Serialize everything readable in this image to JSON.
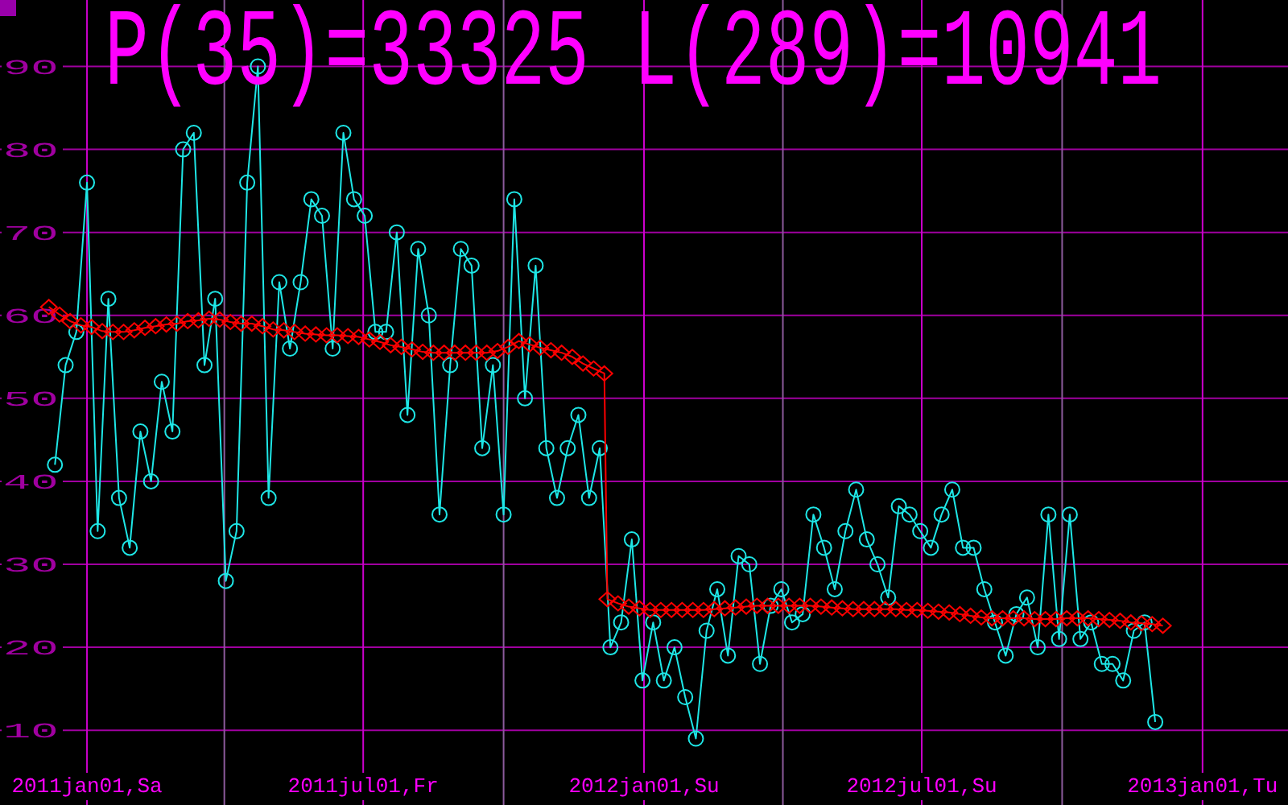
{
  "chart_data": {
    "type": "line",
    "title": "P(35)=33325 L(289)=10941",
    "xlim": [
      "2010-11-05",
      "2013-02-26"
    ],
    "ylim": [
      1,
      98
    ],
    "xticks": [
      {
        "value": "2011-01-01",
        "label": "2011jan01,Sa"
      },
      {
        "value": "2011-04-01",
        "label": null
      },
      {
        "value": "2011-07-01",
        "label": "2011jul01,Fr"
      },
      {
        "value": "2011-10-01",
        "label": null
      },
      {
        "value": "2012-01-01",
        "label": "2012jan01,Su"
      },
      {
        "value": "2012-04-01",
        "label": null
      },
      {
        "value": "2012-07-01",
        "label": "2012jul01,Su"
      },
      {
        "value": "2012-10-01",
        "label": null
      },
      {
        "value": "2013-01-01",
        "label": "2013jan01,Tu"
      }
    ],
    "yticks": [
      10,
      20,
      30,
      40,
      50,
      60,
      70,
      80,
      90
    ],
    "grid": true,
    "series": [
      {
        "color": "#1ee6e6",
        "marker": "circle",
        "x": [
          "2010-12-11",
          "2010-12-18",
          "2010-12-25",
          "2011-01-01",
          "2011-01-08",
          "2011-01-15",
          "2011-01-22",
          "2011-01-29",
          "2011-02-05",
          "2011-02-12",
          "2011-02-19",
          "2011-02-26",
          "2011-03-05",
          "2011-03-12",
          "2011-03-19",
          "2011-03-26",
          "2011-04-02",
          "2011-04-09",
          "2011-04-16",
          "2011-04-23",
          "2011-04-30",
          "2011-05-07",
          "2011-05-14",
          "2011-05-21",
          "2011-05-28",
          "2011-06-04",
          "2011-06-11",
          "2011-06-18",
          "2011-06-25",
          "2011-07-02",
          "2011-07-09",
          "2011-07-16",
          "2011-07-23",
          "2011-07-30",
          "2011-08-06",
          "2011-08-13",
          "2011-08-20",
          "2011-08-27",
          "2011-09-03",
          "2011-09-10",
          "2011-09-17",
          "2011-09-24",
          "2011-10-01",
          "2011-10-08",
          "2011-10-15",
          "2011-10-22",
          "2011-10-29",
          "2011-11-05",
          "2011-11-12",
          "2011-11-19",
          "2011-11-26",
          "2011-12-03",
          "2011-12-10",
          "2011-12-17",
          "2011-12-24",
          "2011-12-31",
          "2012-01-07",
          "2012-01-14",
          "2012-01-21",
          "2012-01-28",
          "2012-02-04",
          "2012-02-11",
          "2012-02-18",
          "2012-02-25",
          "2012-03-03",
          "2012-03-10",
          "2012-03-17",
          "2012-03-24",
          "2012-03-31",
          "2012-04-07",
          "2012-04-14",
          "2012-04-21",
          "2012-04-28",
          "2012-05-05",
          "2012-05-12",
          "2012-05-19",
          "2012-05-26",
          "2012-06-02",
          "2012-06-09",
          "2012-06-16",
          "2012-06-23",
          "2012-06-30",
          "2012-07-07",
          "2012-07-14",
          "2012-07-21",
          "2012-07-28",
          "2012-08-04",
          "2012-08-11",
          "2012-08-18",
          "2012-08-25",
          "2012-09-01",
          "2012-09-08",
          "2012-09-15",
          "2012-09-22",
          "2012-09-29",
          "2012-10-06",
          "2012-10-13",
          "2012-10-20",
          "2012-10-27",
          "2012-11-03",
          "2012-11-10",
          "2012-11-17",
          "2012-11-24",
          "2012-12-01"
        ],
        "values": [
          42,
          54,
          58,
          76,
          34,
          62,
          38,
          32,
          46,
          40,
          52,
          46,
          80,
          82,
          54,
          62,
          28,
          34,
          76,
          90,
          38,
          64,
          56,
          64,
          74,
          72,
          56,
          82,
          74,
          72,
          58,
          58,
          70,
          48,
          68,
          60,
          36,
          54,
          68,
          66,
          44,
          54,
          36,
          74,
          50,
          66,
          44,
          38,
          44,
          48,
          38,
          44,
          20,
          23,
          33,
          16,
          23,
          16,
          20,
          14,
          9,
          22,
          27,
          19,
          31,
          30,
          18,
          25,
          27,
          23,
          24,
          36,
          32,
          27,
          34,
          39,
          33,
          30,
          26,
          37,
          36,
          34,
          32,
          36,
          39,
          32,
          32,
          27,
          23,
          19,
          24,
          26,
          20,
          36,
          21,
          36,
          21,
          23,
          18,
          18,
          16,
          22,
          23,
          11
        ]
      },
      {
        "color": "#ff0000",
        "marker": "diamond",
        "x": [
          "2010-12-07",
          "2010-12-14",
          "2010-12-21",
          "2010-12-28",
          "2011-01-04",
          "2011-01-11",
          "2011-01-18",
          "2011-01-25",
          "2011-02-01",
          "2011-02-08",
          "2011-02-15",
          "2011-02-22",
          "2011-03-01",
          "2011-03-08",
          "2011-03-15",
          "2011-03-22",
          "2011-03-29",
          "2011-04-05",
          "2011-04-12",
          "2011-04-19",
          "2011-04-26",
          "2011-05-03",
          "2011-05-10",
          "2011-05-17",
          "2011-05-24",
          "2011-05-31",
          "2011-06-07",
          "2011-06-14",
          "2011-06-21",
          "2011-06-28",
          "2011-07-05",
          "2011-07-12",
          "2011-07-19",
          "2011-07-26",
          "2011-08-02",
          "2011-08-09",
          "2011-08-16",
          "2011-08-23",
          "2011-08-30",
          "2011-09-06",
          "2011-09-13",
          "2011-09-20",
          "2011-09-27",
          "2011-10-04",
          "2011-10-11",
          "2011-10-18",
          "2011-10-25",
          "2011-11-01",
          "2011-11-08",
          "2011-11-15",
          "2011-11-22",
          "2011-11-29",
          "2011-12-06",
          "2011-12-08",
          "2011-12-15",
          "2011-12-22",
          "2011-12-29",
          "2012-01-05",
          "2012-01-12",
          "2012-01-19",
          "2012-01-26",
          "2012-02-02",
          "2012-02-09",
          "2012-02-16",
          "2012-02-23",
          "2012-03-01",
          "2012-03-08",
          "2012-03-15",
          "2012-03-22",
          "2012-03-29",
          "2012-04-05",
          "2012-04-12",
          "2012-04-19",
          "2012-04-26",
          "2012-05-03",
          "2012-05-10",
          "2012-05-17",
          "2012-05-24",
          "2012-05-31",
          "2012-06-07",
          "2012-06-14",
          "2012-06-21",
          "2012-06-28",
          "2012-07-05",
          "2012-07-12",
          "2012-07-19",
          "2012-07-26",
          "2012-08-02",
          "2012-08-09",
          "2012-08-16",
          "2012-08-23",
          "2012-08-30",
          "2012-09-06",
          "2012-09-13",
          "2012-09-20",
          "2012-09-27",
          "2012-10-04",
          "2012-10-11",
          "2012-10-18",
          "2012-10-25",
          "2012-11-01",
          "2012-11-08",
          "2012-11-15",
          "2012-11-22",
          "2012-11-29",
          "2012-12-06"
        ],
        "values": [
          61.0,
          60.1,
          59.3,
          58.8,
          58.6,
          58.1,
          58.0,
          58.0,
          58.2,
          58.5,
          58.7,
          58.9,
          59.0,
          59.3,
          59.4,
          59.6,
          59.5,
          59.2,
          59.0,
          59.0,
          58.7,
          58.3,
          58.2,
          58.0,
          57.8,
          57.7,
          57.6,
          57.6,
          57.5,
          57.4,
          57.1,
          56.8,
          56.4,
          56.2,
          55.9,
          55.6,
          55.5,
          55.5,
          55.5,
          55.5,
          55.5,
          55.5,
          55.7,
          56.2,
          56.9,
          56.5,
          56.1,
          55.8,
          55.5,
          55.0,
          54.2,
          53.6,
          53.0,
          25.8,
          25.3,
          24.9,
          24.7,
          24.5,
          24.5,
          24.5,
          24.5,
          24.5,
          24.5,
          24.6,
          24.7,
          24.8,
          24.9,
          25.0,
          25.0,
          25.0,
          25.0,
          25.0,
          25.0,
          24.9,
          24.8,
          24.7,
          24.6,
          24.6,
          24.6,
          24.6,
          24.6,
          24.5,
          24.5,
          24.4,
          24.3,
          24.2,
          24.0,
          23.8,
          23.6,
          23.5,
          23.5,
          23.5,
          23.5,
          23.4,
          23.4,
          23.4,
          23.5,
          23.5,
          23.5,
          23.4,
          23.3,
          23.2,
          23.0,
          22.9,
          22.8,
          22.6
        ]
      }
    ]
  }
}
